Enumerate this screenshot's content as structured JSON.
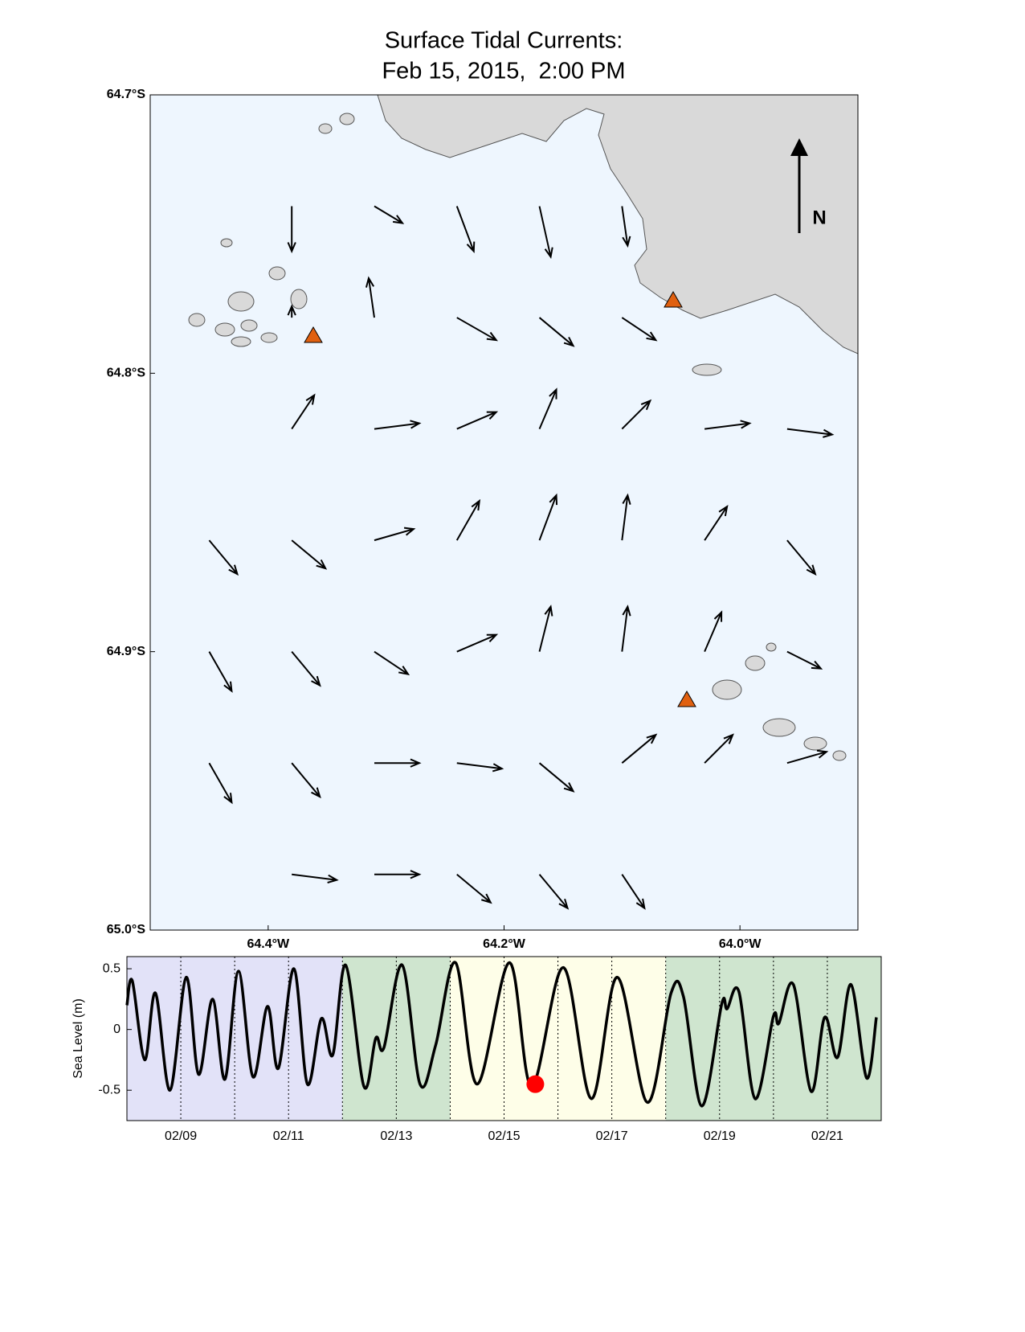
{
  "chart_data": [
    {
      "type": "quiver",
      "title": "Surface Tidal Currents:",
      "subtitle": "Feb 15, 2015,  2:00 PM",
      "north_label": "N",
      "background": "#eef6fe",
      "color": "#000000",
      "xlim": [
        -64.5,
        -63.9
      ],
      "ylim": [
        -65.0,
        -64.7
      ],
      "xticks": [
        {
          "value": -64.4,
          "label": "64.4°W"
        },
        {
          "value": -64.2,
          "label": "64.2°W"
        },
        {
          "value": -64.0,
          "label": "64.0°W"
        }
      ],
      "yticks": [
        {
          "value": -64.7,
          "label": "64.7°S"
        },
        {
          "value": -64.8,
          "label": "64.8°S"
        },
        {
          "value": -64.9,
          "label": "64.9°S"
        },
        {
          "value": -65.0,
          "label": "65.0°S"
        }
      ],
      "x": [
        -64.38,
        -64.31,
        -64.24,
        -64.17,
        -64.1,
        -64.38,
        -64.31,
        -64.24,
        -64.17,
        -64.1,
        -64.38,
        -64.31,
        -64.24,
        -64.17,
        -64.1,
        -64.03,
        -63.96,
        -64.45,
        -64.38,
        -64.31,
        -64.24,
        -64.17,
        -64.1,
        -64.03,
        -63.96,
        -64.45,
        -64.38,
        -64.31,
        -64.24,
        -64.17,
        -64.1,
        -64.03,
        -63.96,
        -64.45,
        -64.38,
        -64.31,
        -64.24,
        -64.17,
        -64.1,
        -64.03,
        -63.96,
        -64.38,
        -64.31,
        -64.24,
        -64.17,
        -64.1
      ],
      "y": [
        -64.74,
        -64.74,
        -64.74,
        -64.74,
        -64.74,
        -64.78,
        -64.78,
        -64.78,
        -64.78,
        -64.78,
        -64.82,
        -64.82,
        -64.82,
        -64.82,
        -64.82,
        -64.82,
        -64.82,
        -64.86,
        -64.86,
        -64.86,
        -64.86,
        -64.86,
        -64.86,
        -64.86,
        -64.86,
        -64.9,
        -64.9,
        -64.9,
        -64.9,
        -64.9,
        -64.9,
        -64.9,
        -64.9,
        -64.94,
        -64.94,
        -64.94,
        -64.94,
        -64.94,
        -64.94,
        -64.94,
        -64.94,
        -64.98,
        -64.98,
        -64.98,
        -64.98,
        -64.98
      ],
      "u": [
        0,
        0.5,
        0.3,
        0.2,
        0.1,
        0,
        -0.1,
        0.7,
        0.6,
        0.6,
        0.4,
        0.8,
        0.7,
        0.3,
        0.5,
        0.8,
        0.8,
        0.5,
        0.6,
        0.7,
        0.4,
        0.3,
        0.1,
        0.4,
        0.5,
        0.4,
        0.5,
        0.6,
        0.7,
        0.2,
        0.1,
        0.3,
        0.6,
        0.4,
        0.5,
        0.8,
        0.8,
        0.6,
        0.6,
        0.5,
        0.7,
        0.8,
        0.8,
        0.6,
        0.5,
        0.4
      ],
      "v": [
        -0.8,
        -0.3,
        -0.8,
        -0.9,
        -0.7,
        0.2,
        0.7,
        -0.4,
        -0.5,
        -0.4,
        0.6,
        0.1,
        0.3,
        0.7,
        0.5,
        0.1,
        -0.1,
        -0.6,
        -0.5,
        0.2,
        0.7,
        0.8,
        0.8,
        0.6,
        -0.6,
        -0.7,
        -0.6,
        -0.4,
        0.3,
        0.8,
        0.8,
        0.7,
        -0.3,
        -0.7,
        -0.6,
        0,
        -0.1,
        -0.5,
        0.5,
        0.5,
        0.2,
        -0.1,
        0,
        -0.5,
        -0.6,
        -0.6
      ]
    },
    {
      "type": "line",
      "ylabel": "Sea Level (m)",
      "xlim": [
        8,
        22
      ],
      "ylim": [
        -0.75,
        0.6
      ],
      "xticks": [
        {
          "value": 9,
          "label": "02/09"
        },
        {
          "value": 11,
          "label": "02/11"
        },
        {
          "value": 13,
          "label": "02/13"
        },
        {
          "value": 15,
          "label": "02/15"
        },
        {
          "value": 17,
          "label": "02/17"
        },
        {
          "value": 19,
          "label": "02/19"
        },
        {
          "value": 21,
          "label": "02/21"
        }
      ],
      "xminorticks": [
        10,
        12,
        14,
        16,
        18,
        20
      ],
      "yticks": [
        0.5,
        0,
        -0.5
      ],
      "bands": [
        {
          "range": [
            8,
            12
          ],
          "color": "#e2e2f8"
        },
        {
          "range": [
            12,
            14
          ],
          "color": "#cfe5cf"
        },
        {
          "range": [
            14,
            18
          ],
          "color": "#fefee8"
        },
        {
          "range": [
            18,
            22
          ],
          "color": "#cfe5cf"
        }
      ],
      "series": [
        {
          "color": "#000000",
          "x": [
            8.0,
            8.1,
            8.33,
            8.53,
            8.8,
            9.1,
            9.33,
            9.59,
            9.82,
            10.07,
            10.34,
            10.61,
            10.81,
            11.1,
            11.35,
            11.61,
            11.82,
            12.06,
            12.4,
            12.62,
            12.77,
            13.11,
            13.44,
            13.73,
            14.1,
            14.5,
            15.1,
            15.51,
            16.1,
            16.62,
            17.1,
            17.66,
            18.1,
            18.33,
            18.67,
            19.04,
            19.14,
            19.36,
            19.66,
            20.0,
            20.1,
            20.37,
            20.7,
            20.95,
            21.19,
            21.44,
            21.73,
            21.91
          ],
          "values": [
            0.2,
            0.4,
            -0.25,
            0.3,
            -0.5,
            0.43,
            -0.37,
            0.25,
            -0.41,
            0.48,
            -0.39,
            0.19,
            -0.32,
            0.5,
            -0.45,
            0.09,
            -0.21,
            0.53,
            -0.47,
            -0.07,
            -0.15,
            0.53,
            -0.45,
            -0.13,
            0.55,
            -0.45,
            0.55,
            -0.47,
            0.51,
            -0.57,
            0.43,
            -0.6,
            0.3,
            0.27,
            -0.63,
            0.21,
            0.17,
            0.31,
            -0.57,
            0.11,
            0.05,
            0.37,
            -0.51,
            0.1,
            -0.23,
            0.37,
            -0.4,
            0.1
          ]
        }
      ],
      "marker": {
        "x": 15.58,
        "y": -0.45,
        "color": "#ff0000"
      }
    }
  ]
}
